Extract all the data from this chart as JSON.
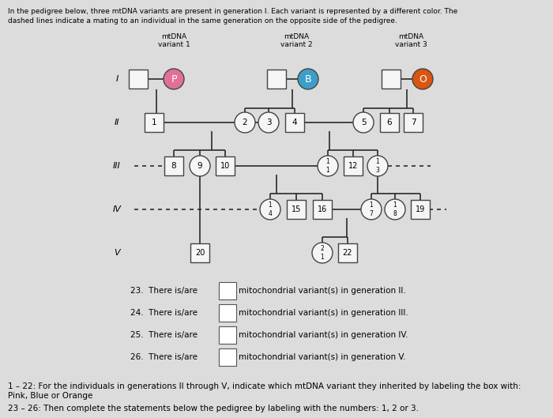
{
  "bg_color": "#dcdcdc",
  "title_line1": "In the pedigree below, three mtDNA variants are present in generation I. Each variant is represented by a different color. The",
  "title_line2": "dashed lines indicate a mating to an individual in the same generation on the opposite side of the pedigree.",
  "footer1": "1 – 22: For the individuals in generations II through V, indicate which mtDNA variant they inherited by labeling the box with:",
  "footer1b": "Pink, Blue or Orange",
  "footer2": "23 – 26: Then complete the statements below the pedigree by labeling with the numbers: 1, 2 or 3.",
  "variant_labels": [
    "mtDNA\nvariant 1",
    "mtDNA\nvariant 2",
    "mtDNA\nvariant 3"
  ],
  "gen_labels": [
    "I",
    "II",
    "III",
    "IV",
    "V"
  ],
  "pink_color": "#E0709A",
  "blue_color": "#3B9FC8",
  "orange_color": "#D95510",
  "box_facecolor": "#f5f5f5",
  "line_color": "#2a2a2a",
  "q_labels": [
    "23.",
    "24.",
    "25.",
    "26."
  ],
  "q_gens": [
    "II",
    "III",
    "IV",
    "V"
  ]
}
